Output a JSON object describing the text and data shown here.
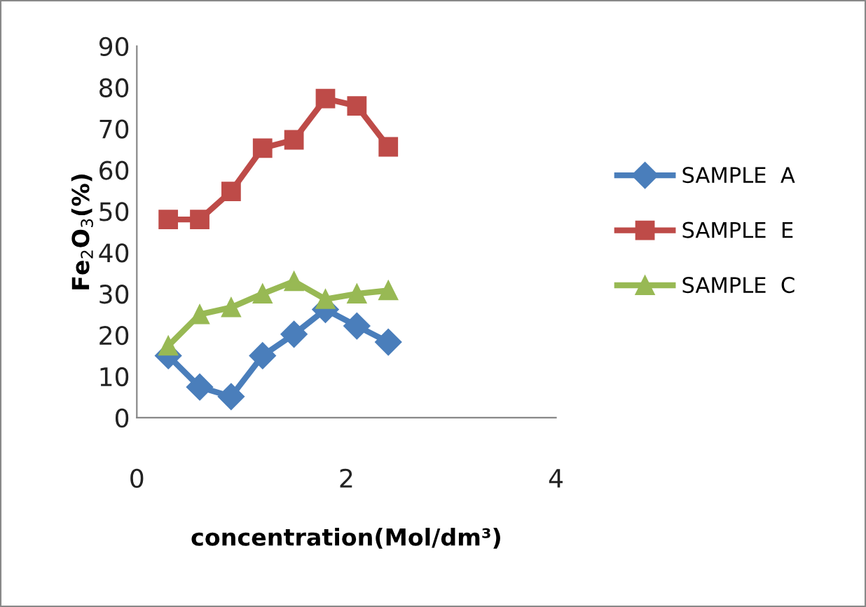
{
  "chart_data": {
    "type": "line",
    "xlabel": "concentration(Mol/dm³)",
    "ylabel": "Fe$_{2}$O$_{3}$(%)",
    "x": [
      0.3,
      0.6,
      0.9,
      1.2,
      1.5,
      1.8,
      2.1,
      2.4
    ],
    "xlim": [
      0,
      4
    ],
    "xticks": [
      0,
      2,
      4
    ],
    "ylim": [
      0,
      90
    ],
    "yticks": [
      0,
      10,
      20,
      30,
      40,
      50,
      60,
      70,
      80,
      90
    ],
    "grid": false,
    "legend": "right",
    "series": [
      {
        "name": "SAMPLE  A",
        "color": "#4a7ebb",
        "marker": "diamond",
        "values": [
          15,
          7.4,
          5.1,
          15,
          20.2,
          26.2,
          22.2,
          18.3
        ]
      },
      {
        "name": "SAMPLE  E",
        "color": "#be4b48",
        "marker": "square",
        "values": [
          48,
          48,
          54.8,
          65.3,
          67.3,
          77.3,
          75.5,
          65.6
        ]
      },
      {
        "name": "SAMPLE  C",
        "color": "#98b954",
        "marker": "triangle",
        "values": [
          17.4,
          25,
          26.7,
          30,
          33,
          28.7,
          30,
          30.8
        ]
      }
    ]
  }
}
